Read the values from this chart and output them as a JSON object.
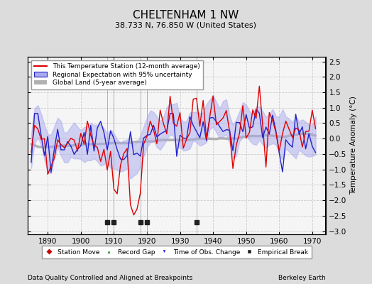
{
  "title": "CHELTENHAM 1 NW",
  "subtitle": "38.733 N, 76.850 W (United States)",
  "ylabel": "Temperature Anomaly (°C)",
  "xlabel_bottom": "Data Quality Controlled and Aligned at Breakpoints",
  "xlabel_right": "Berkeley Earth",
  "xlim": [
    1884,
    1974
  ],
  "ylim": [
    -3.1,
    2.65
  ],
  "yticks": [
    -3,
    -2.5,
    -2,
    -1.5,
    -1,
    -0.5,
    0,
    0.5,
    1,
    1.5,
    2,
    2.5
  ],
  "xticks": [
    1890,
    1900,
    1910,
    1920,
    1930,
    1940,
    1950,
    1960,
    1970
  ],
  "background_color": "#dcdcdc",
  "plot_bg_color": "#f5f5f5",
  "station_line_color": "#dd0000",
  "regional_line_color": "#2222cc",
  "regional_fill_color": "#aaaaee",
  "global_line_color": "#b0b0b0",
  "legend_items": [
    "This Temperature Station (12-month average)",
    "Regional Expectation with 95% uncertainty",
    "Global Land (5-year average)"
  ],
  "marker_legend": [
    {
      "label": "Station Move",
      "color": "#cc0000",
      "marker": "D"
    },
    {
      "label": "Record Gap",
      "color": "#008800",
      "marker": "^"
    },
    {
      "label": "Time of Obs. Change",
      "color": "#2222cc",
      "marker": "v"
    },
    {
      "label": "Empirical Break",
      "color": "#222222",
      "marker": "s"
    }
  ],
  "empirical_breaks": [
    1908,
    1910,
    1918,
    1920,
    1935
  ],
  "vline_color": "#888888",
  "grid_color": "#cccccc"
}
